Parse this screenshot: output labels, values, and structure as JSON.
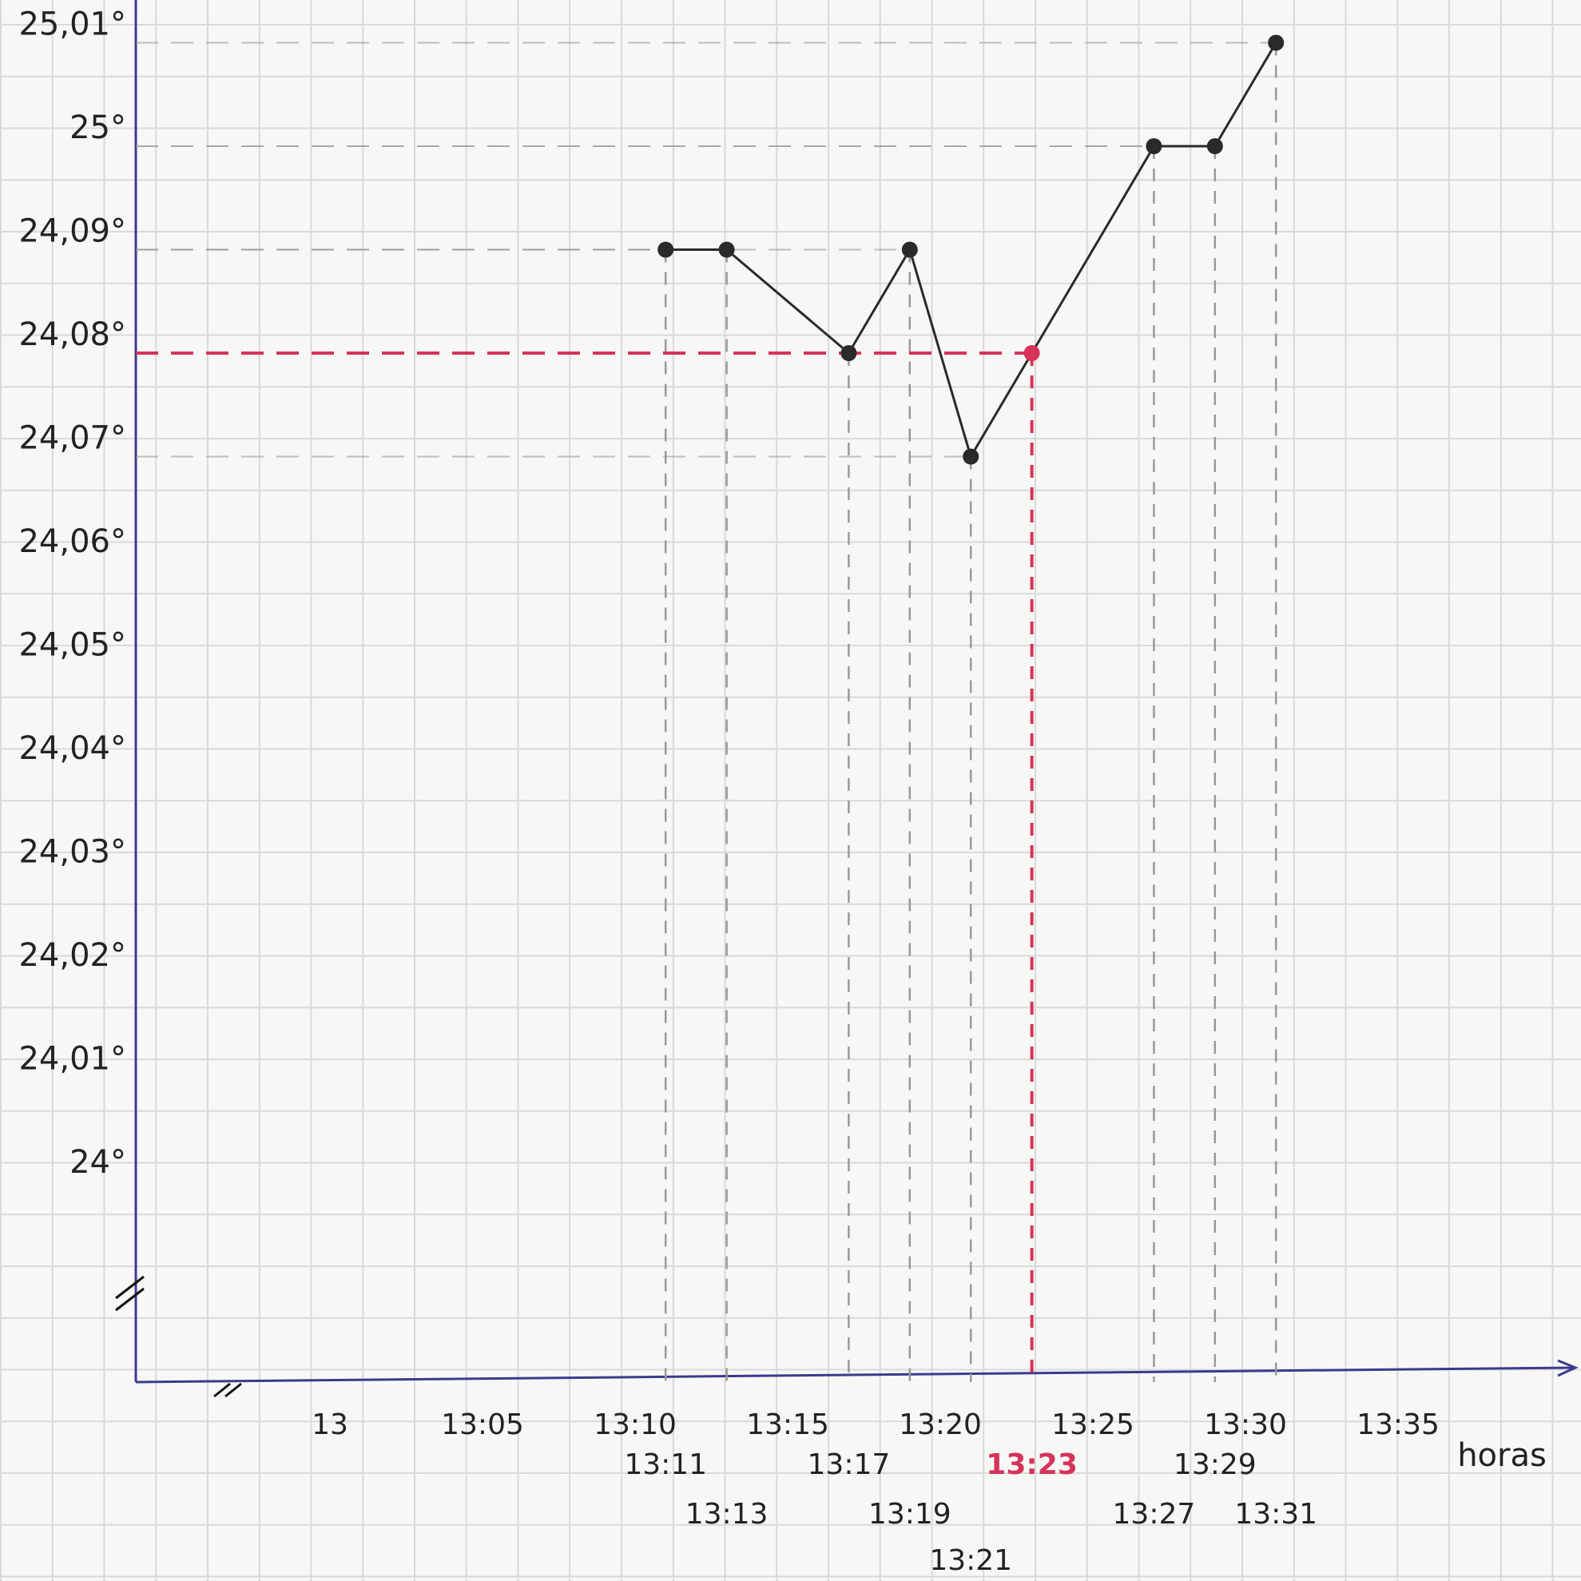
{
  "chart_data": {
    "type": "line",
    "title": "",
    "xlabel": "horas",
    "ylabel": "",
    "grid": true,
    "y_tick_labels": [
      "24°",
      "24,01°",
      "24,02°",
      "24,03°",
      "24,04°",
      "24,05°",
      "24,06°",
      "24,07°",
      "24,08°",
      "24,09°",
      "25°",
      "25,01°"
    ],
    "x_tick_labels": [
      "13",
      "13:05",
      "13:10",
      "13:15",
      "13:20",
      "13:25",
      "13:30",
      "13:35"
    ],
    "series": [
      {
        "x": [
          "13:11",
          "13:13",
          "13:17",
          "13:19",
          "13:21",
          "13:23",
          "13:27",
          "13:29",
          "13:31"
        ],
        "y_labels": [
          "24,09°",
          "24,09°",
          "24,08°",
          "24,09°",
          "24,07°",
          "24,08°",
          "25°",
          "25°",
          "25,01°"
        ],
        "color": "#2a2a2a"
      }
    ],
    "highlight": {
      "x": "13:23",
      "y_label": "24,08°",
      "color": "#d6335a"
    },
    "axis_color": "#3b3a8c",
    "axis_breaks": true
  }
}
